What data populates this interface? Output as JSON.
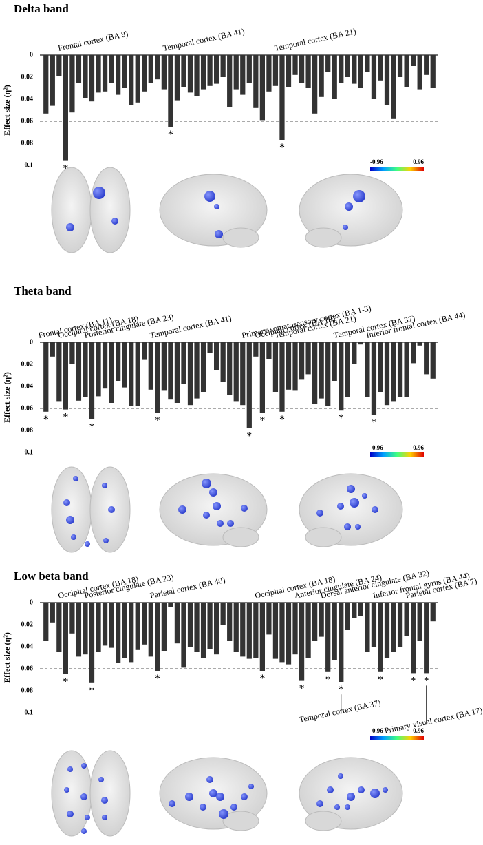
{
  "chart_data": [
    {
      "type": "bar",
      "title": "Delta band",
      "ylabel": "Effect size (η²)",
      "color": "#333333",
      "inverted": true,
      "ylim": [
        0,
        0.1
      ],
      "yticks": [
        0,
        0.02,
        0.04,
        0.06,
        0.08,
        0.1
      ],
      "threshold": 0.06,
      "colorbar_ticks": [
        -0.96,
        0.96
      ],
      "categories": [
        null,
        null,
        null,
        "Frontal cortex (BA 8)",
        null,
        null,
        null,
        null,
        null,
        null,
        null,
        null,
        null,
        null,
        null,
        null,
        null,
        null,
        null,
        "Temporal cortex (BA 41)",
        null,
        null,
        null,
        null,
        null,
        null,
        null,
        null,
        null,
        null,
        null,
        null,
        null,
        null,
        null,
        null,
        "Temporal cortex (BA 21)",
        null,
        null,
        null,
        null,
        null,
        null,
        null,
        null,
        null,
        null,
        null,
        null,
        null,
        null,
        null,
        null,
        null,
        null,
        null,
        null,
        null,
        null,
        null
      ],
      "values": [
        0.053,
        0.046,
        0.019,
        0.096,
        0.052,
        0.025,
        0.039,
        0.042,
        0.034,
        0.033,
        0.025,
        0.036,
        0.03,
        0.045,
        0.043,
        0.033,
        0.025,
        0.022,
        0.031,
        0.065,
        0.041,
        0.029,
        0.034,
        0.037,
        0.031,
        0.028,
        0.026,
        0.02,
        0.047,
        0.031,
        0.036,
        0.025,
        0.048,
        0.059,
        0.033,
        0.028,
        0.077,
        0.029,
        0.018,
        0.025,
        0.03,
        0.053,
        0.038,
        0.015,
        0.04,
        0.025,
        0.02,
        0.026,
        0.03,
        0.015,
        0.04,
        0.023,
        0.045,
        0.058,
        0.02,
        0.029,
        0.01,
        0.031,
        0.018,
        0.03
      ],
      "markers": [
        null,
        null,
        null,
        "*",
        null,
        null,
        null,
        null,
        null,
        null,
        null,
        null,
        null,
        null,
        null,
        null,
        null,
        null,
        null,
        "*",
        null,
        null,
        null,
        null,
        null,
        null,
        null,
        null,
        null,
        null,
        null,
        null,
        null,
        null,
        null,
        null,
        "*",
        null,
        null,
        null,
        null,
        null,
        null,
        null,
        null,
        null,
        null,
        null,
        null,
        null,
        null,
        null,
        null,
        null,
        null,
        null,
        null,
        null,
        null,
        null
      ]
    },
    {
      "type": "bar",
      "title": "Theta band",
      "ylabel": "Effect size (η²)",
      "color": "#333333",
      "inverted": true,
      "ylim": [
        0,
        0.1
      ],
      "yticks": [
        0,
        0.02,
        0.04,
        0.06,
        0.08,
        0.1
      ],
      "threshold": 0.06,
      "colorbar_ticks": [
        -0.96,
        0.96
      ],
      "categories": [
        "Frontal cortex (BA 11)",
        null,
        null,
        "Occipital cortex (BA 18)",
        null,
        null,
        null,
        "Posterior cingulate (BA 23)",
        null,
        null,
        null,
        null,
        null,
        null,
        null,
        null,
        null,
        "Temporal cortex (BA 41)",
        null,
        null,
        null,
        null,
        null,
        null,
        null,
        null,
        null,
        null,
        null,
        null,
        null,
        "Primary somatosensory cortex (BA 1-3)",
        null,
        "Occipital cortex (BA 18)",
        null,
        null,
        "Temporal cortex (BA 21)",
        null,
        null,
        null,
        null,
        null,
        null,
        null,
        null,
        "Temporal cortex (BA 37)",
        null,
        null,
        null,
        null,
        "Inferior frontal cortex (BA 44)",
        null,
        null,
        null,
        null,
        null,
        null,
        null,
        null,
        null
      ],
      "values": [
        0.063,
        0.013,
        0.054,
        0.061,
        0.02,
        0.053,
        0.05,
        0.07,
        0.049,
        0.042,
        0.055,
        0.035,
        0.041,
        0.058,
        0.058,
        0.016,
        0.043,
        0.064,
        0.044,
        0.052,
        0.055,
        0.038,
        0.057,
        0.051,
        0.045,
        0.01,
        0.025,
        0.036,
        0.048,
        0.054,
        0.057,
        0.078,
        0.013,
        0.064,
        0.015,
        0.045,
        0.063,
        0.043,
        0.044,
        0.034,
        0.029,
        0.056,
        0.051,
        0.058,
        0.035,
        0.062,
        0.05,
        0.02,
        0.002,
        0.05,
        0.066,
        0.045,
        0.057,
        0.054,
        0.05,
        0.05,
        0.019,
        0.003,
        0.029,
        0.033
      ],
      "markers": [
        "*",
        null,
        null,
        "*",
        null,
        null,
        null,
        "*",
        null,
        null,
        null,
        null,
        null,
        null,
        null,
        null,
        null,
        "*",
        null,
        null,
        null,
        null,
        null,
        null,
        null,
        null,
        null,
        null,
        null,
        null,
        null,
        "*",
        null,
        "*",
        null,
        null,
        "*",
        null,
        null,
        null,
        null,
        null,
        null,
        null,
        null,
        "*",
        null,
        null,
        null,
        null,
        "*",
        null,
        null,
        null,
        null,
        null,
        null,
        null,
        null,
        null
      ]
    },
    {
      "type": "bar",
      "title": "Low beta band",
      "ylabel": "Effect size (η²)",
      "color": "#333333",
      "inverted": true,
      "ylim": [
        0,
        0.1
      ],
      "yticks": [
        0,
        0.02,
        0.04,
        0.06,
        0.08,
        0.1
      ],
      "threshold": 0.06,
      "colorbar_ticks": [
        -0.96,
        0.96
      ],
      "categories": [
        null,
        null,
        null,
        "Occipital cortex (BA 18)",
        null,
        null,
        null,
        "Posterior cingulate (BA 23)",
        null,
        null,
        null,
        null,
        null,
        null,
        null,
        null,
        null,
        "Parietal cortex (BA 40)",
        null,
        null,
        null,
        null,
        null,
        null,
        null,
        null,
        null,
        null,
        null,
        null,
        null,
        null,
        null,
        "Occipital cortex (BA 18)",
        null,
        null,
        null,
        null,
        null,
        "Anterior cingulate (BA 24)",
        null,
        null,
        null,
        "Dorsal anterior cingulate (BA 32)",
        null,
        null,
        null,
        null,
        null,
        null,
        null,
        "Inferior frontal gyrus (BA 44)",
        null,
        null,
        null,
        null,
        "Parietal cortex (BA 7)",
        null,
        null,
        null
      ],
      "categories_below": [
        null,
        null,
        null,
        null,
        null,
        null,
        null,
        null,
        null,
        null,
        null,
        null,
        null,
        null,
        null,
        null,
        null,
        null,
        null,
        null,
        null,
        null,
        null,
        null,
        null,
        null,
        null,
        null,
        null,
        null,
        null,
        null,
        null,
        null,
        null,
        null,
        null,
        null,
        null,
        null,
        null,
        null,
        null,
        null,
        null,
        "Temporal cortex (BA 37)",
        null,
        null,
        null,
        null,
        null,
        null,
        null,
        null,
        null,
        null,
        null,
        null,
        "Primary visual cortex (BA 17)",
        null
      ],
      "values": [
        0.035,
        0.018,
        0.045,
        0.065,
        0.028,
        0.049,
        0.047,
        0.073,
        0.045,
        0.039,
        0.041,
        0.055,
        0.05,
        0.054,
        0.043,
        0.038,
        0.049,
        0.062,
        0.044,
        0.004,
        0.037,
        0.059,
        0.04,
        0.045,
        0.05,
        0.042,
        0.047,
        0.02,
        0.035,
        0.045,
        0.049,
        0.051,
        0.05,
        0.062,
        0.029,
        0.051,
        0.054,
        0.056,
        0.047,
        0.071,
        0.05,
        0.035,
        0.031,
        0.063,
        0.052,
        0.072,
        0.025,
        0.014,
        0.012,
        0.045,
        0.04,
        0.063,
        0.05,
        0.045,
        0.04,
        0.03,
        0.064,
        0.035,
        0.064,
        0.017
      ],
      "markers": [
        null,
        null,
        null,
        "*",
        null,
        null,
        null,
        "*",
        null,
        null,
        null,
        null,
        null,
        null,
        null,
        null,
        null,
        "*",
        null,
        null,
        null,
        null,
        null,
        null,
        null,
        null,
        null,
        null,
        null,
        null,
        null,
        null,
        null,
        "*",
        null,
        null,
        null,
        null,
        null,
        "*",
        null,
        null,
        null,
        "*",
        null,
        "*",
        null,
        null,
        null,
        null,
        null,
        "*",
        null,
        null,
        null,
        null,
        "*",
        null,
        "*",
        null
      ]
    }
  ]
}
